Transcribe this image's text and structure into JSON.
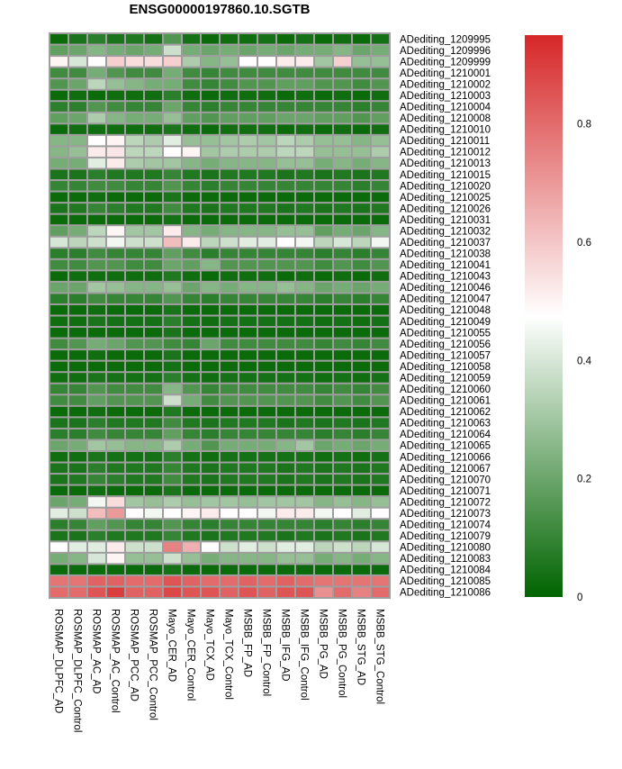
{
  "chart_data": {
    "type": "heatmap",
    "title": "ENSG00000197860.10.SGTB",
    "columns": [
      "ROSMAP_DLPFC_AD",
      "ROSMAP_DLPFC_Control",
      "ROSMAP_AC_AD",
      "ROSMAP_AC_Control",
      "ROSMAP_PCC_AD",
      "ROSMAP_PCC_Control",
      "Mayo_CER_AD",
      "Mayo_CER_Control",
      "Mayo_TCX_AD",
      "Mayo_TCX_Control",
      "MSBB_FP_AD",
      "MSBB_FP_Control",
      "MSBB_IFG_AD",
      "MSBB_IFG_Control",
      "MSBB_PG_AD",
      "MSBB_PG_Control",
      "MSBB_STG_AD",
      "MSBB_STG_Control"
    ],
    "rows": [
      "ADediting_1209995",
      "ADediting_1209996",
      "ADediting_1209999",
      "ADediting_1210001",
      "ADediting_1210002",
      "ADediting_1210003",
      "ADediting_1210004",
      "ADediting_1210008",
      "ADediting_1210010",
      "ADediting_1210011",
      "ADediting_1210012",
      "ADediting_1210013",
      "ADediting_1210015",
      "ADediting_1210020",
      "ADediting_1210025",
      "ADediting_1210026",
      "ADediting_1210031",
      "ADediting_1210032",
      "ADediting_1210037",
      "ADediting_1210038",
      "ADediting_1210041",
      "ADediting_1210043",
      "ADediting_1210046",
      "ADediting_1210047",
      "ADediting_1210048",
      "ADediting_1210049",
      "ADediting_1210055",
      "ADediting_1210056",
      "ADediting_1210057",
      "ADediting_1210058",
      "ADediting_1210059",
      "ADediting_1210060",
      "ADediting_1210061",
      "ADediting_1210062",
      "ADediting_1210063",
      "ADediting_1210064",
      "ADediting_1210065",
      "ADediting_1210066",
      "ADediting_1210067",
      "ADediting_1210070",
      "ADediting_1210071",
      "ADediting_1210072",
      "ADediting_1210073",
      "ADediting_1210074",
      "ADediting_1210079",
      "ADediting_1210080",
      "ADediting_1210083",
      "ADediting_1210084",
      "ADediting_1210085",
      "ADediting_1210086"
    ],
    "values": [
      [
        0.02,
        0.05,
        0.08,
        0.05,
        0.06,
        0.04,
        0.15,
        0.04,
        0.02,
        0.03,
        0.03,
        0.04,
        0.02,
        0.04,
        0.02,
        0.03,
        0.02,
        0.04
      ],
      [
        0.18,
        0.2,
        0.25,
        0.22,
        0.2,
        0.22,
        0.38,
        0.22,
        0.2,
        0.22,
        0.2,
        0.22,
        0.2,
        0.22,
        0.22,
        0.25,
        0.2,
        0.22
      ],
      [
        0.5,
        0.4,
        0.48,
        0.58,
        0.55,
        0.55,
        0.58,
        0.32,
        0.25,
        0.28,
        0.48,
        0.48,
        0.52,
        0.52,
        0.3,
        0.58,
        0.28,
        0.28
      ],
      [
        0.12,
        0.12,
        0.22,
        0.15,
        0.12,
        0.12,
        0.22,
        0.12,
        0.1,
        0.12,
        0.12,
        0.12,
        0.12,
        0.12,
        0.12,
        0.12,
        0.12,
        0.12
      ],
      [
        0.15,
        0.2,
        0.35,
        0.28,
        0.25,
        0.22,
        0.22,
        0.12,
        0.1,
        0.12,
        0.15,
        0.15,
        0.18,
        0.18,
        0.15,
        0.15,
        0.12,
        0.15
      ],
      [
        0.02,
        0.03,
        0.02,
        0.03,
        0.03,
        0.03,
        0.08,
        0.03,
        0.02,
        0.03,
        0.03,
        0.03,
        0.02,
        0.03,
        0.02,
        0.03,
        0.02,
        0.03
      ],
      [
        0.08,
        0.08,
        0.15,
        0.12,
        0.1,
        0.1,
        0.2,
        0.1,
        0.08,
        0.1,
        0.1,
        0.1,
        0.1,
        0.1,
        0.1,
        0.1,
        0.08,
        0.1
      ],
      [
        0.18,
        0.2,
        0.32,
        0.25,
        0.22,
        0.22,
        0.28,
        0.18,
        0.15,
        0.18,
        0.18,
        0.18,
        0.2,
        0.2,
        0.18,
        0.18,
        0.15,
        0.18
      ],
      [
        0.02,
        0.03,
        0.03,
        0.03,
        0.03,
        0.03,
        0.05,
        0.03,
        0.02,
        0.03,
        0.03,
        0.03,
        0.02,
        0.03,
        0.02,
        0.03,
        0.02,
        0.03
      ],
      [
        0.25,
        0.25,
        0.48,
        0.5,
        0.35,
        0.32,
        0.42,
        0.28,
        0.28,
        0.3,
        0.32,
        0.3,
        0.35,
        0.32,
        0.28,
        0.28,
        0.25,
        0.28
      ],
      [
        0.25,
        0.28,
        0.52,
        0.53,
        0.35,
        0.35,
        0.48,
        0.5,
        0.3,
        0.32,
        0.32,
        0.32,
        0.35,
        0.35,
        0.28,
        0.28,
        0.28,
        0.32
      ],
      [
        0.22,
        0.22,
        0.42,
        0.52,
        0.32,
        0.3,
        0.3,
        0.25,
        0.22,
        0.25,
        0.25,
        0.25,
        0.28,
        0.28,
        0.22,
        0.25,
        0.22,
        0.25
      ],
      [
        0.05,
        0.05,
        0.08,
        0.06,
        0.06,
        0.06,
        0.1,
        0.06,
        0.05,
        0.06,
        0.06,
        0.06,
        0.05,
        0.06,
        0.05,
        0.06,
        0.05,
        0.06
      ],
      [
        0.1,
        0.1,
        0.12,
        0.12,
        0.1,
        0.1,
        0.15,
        0.1,
        0.08,
        0.1,
        0.1,
        0.1,
        0.1,
        0.1,
        0.1,
        0.1,
        0.08,
        0.1
      ],
      [
        0.02,
        0.02,
        0.03,
        0.02,
        0.02,
        0.02,
        0.05,
        0.02,
        0.02,
        0.02,
        0.02,
        0.02,
        0.02,
        0.02,
        0.02,
        0.02,
        0.02,
        0.02
      ],
      [
        0.05,
        0.06,
        0.1,
        0.08,
        0.06,
        0.06,
        0.12,
        0.06,
        0.05,
        0.06,
        0.06,
        0.06,
        0.05,
        0.06,
        0.05,
        0.06,
        0.05,
        0.06
      ],
      [
        0.02,
        0.02,
        0.02,
        0.02,
        0.02,
        0.02,
        0.04,
        0.02,
        0.02,
        0.02,
        0.02,
        0.02,
        0.02,
        0.02,
        0.02,
        0.02,
        0.02,
        0.02
      ],
      [
        0.18,
        0.22,
        0.35,
        0.5,
        0.3,
        0.3,
        0.52,
        0.25,
        0.22,
        0.25,
        0.25,
        0.25,
        0.28,
        0.28,
        0.18,
        0.22,
        0.2,
        0.25
      ],
      [
        0.4,
        0.35,
        0.38,
        0.45,
        0.38,
        0.38,
        0.62,
        0.52,
        0.35,
        0.38,
        0.42,
        0.42,
        0.48,
        0.45,
        0.35,
        0.4,
        0.35,
        0.45
      ],
      [
        0.08,
        0.08,
        0.12,
        0.1,
        0.1,
        0.1,
        0.18,
        0.12,
        0.08,
        0.1,
        0.1,
        0.1,
        0.1,
        0.1,
        0.08,
        0.1,
        0.08,
        0.1
      ],
      [
        0.12,
        0.12,
        0.15,
        0.15,
        0.12,
        0.12,
        0.2,
        0.18,
        0.25,
        0.15,
        0.15,
        0.15,
        0.15,
        0.15,
        0.12,
        0.15,
        0.12,
        0.15
      ],
      [
        0.02,
        0.03,
        0.03,
        0.03,
        0.03,
        0.03,
        0.06,
        0.03,
        0.02,
        0.03,
        0.03,
        0.03,
        0.02,
        0.03,
        0.02,
        0.03,
        0.02,
        0.03
      ],
      [
        0.2,
        0.2,
        0.3,
        0.28,
        0.25,
        0.25,
        0.28,
        0.2,
        0.25,
        0.22,
        0.25,
        0.25,
        0.28,
        0.25,
        0.2,
        0.22,
        0.2,
        0.22
      ],
      [
        0.08,
        0.08,
        0.12,
        0.1,
        0.1,
        0.1,
        0.15,
        0.1,
        0.08,
        0.1,
        0.1,
        0.1,
        0.1,
        0.1,
        0.08,
        0.1,
        0.08,
        0.1
      ],
      [
        0.02,
        0.02,
        0.03,
        0.02,
        0.02,
        0.02,
        0.05,
        0.02,
        0.02,
        0.02,
        0.02,
        0.02,
        0.02,
        0.02,
        0.02,
        0.02,
        0.02,
        0.02
      ],
      [
        0.03,
        0.03,
        0.05,
        0.04,
        0.04,
        0.04,
        0.08,
        0.04,
        0.03,
        0.04,
        0.04,
        0.04,
        0.04,
        0.04,
        0.03,
        0.04,
        0.03,
        0.04
      ],
      [
        0.02,
        0.02,
        0.02,
        0.02,
        0.02,
        0.02,
        0.05,
        0.02,
        0.02,
        0.02,
        0.02,
        0.02,
        0.02,
        0.02,
        0.02,
        0.02,
        0.02,
        0.02
      ],
      [
        0.12,
        0.15,
        0.22,
        0.2,
        0.15,
        0.15,
        0.12,
        0.1,
        0.2,
        0.12,
        0.12,
        0.12,
        0.12,
        0.12,
        0.1,
        0.12,
        0.1,
        0.12
      ],
      [
        0.02,
        0.02,
        0.03,
        0.02,
        0.02,
        0.02,
        0.05,
        0.02,
        0.02,
        0.02,
        0.02,
        0.02,
        0.02,
        0.02,
        0.02,
        0.02,
        0.02,
        0.02
      ],
      [
        0.02,
        0.02,
        0.02,
        0.02,
        0.02,
        0.02,
        0.04,
        0.02,
        0.02,
        0.02,
        0.02,
        0.02,
        0.02,
        0.02,
        0.02,
        0.02,
        0.02,
        0.02
      ],
      [
        0.03,
        0.03,
        0.05,
        0.04,
        0.04,
        0.04,
        0.08,
        0.04,
        0.03,
        0.04,
        0.04,
        0.04,
        0.04,
        0.04,
        0.03,
        0.04,
        0.03,
        0.04
      ],
      [
        0.1,
        0.1,
        0.15,
        0.12,
        0.12,
        0.12,
        0.25,
        0.15,
        0.1,
        0.12,
        0.12,
        0.12,
        0.12,
        0.12,
        0.1,
        0.12,
        0.1,
        0.12
      ],
      [
        0.12,
        0.12,
        0.18,
        0.15,
        0.15,
        0.15,
        0.38,
        0.22,
        0.12,
        0.15,
        0.15,
        0.15,
        0.15,
        0.15,
        0.12,
        0.15,
        0.12,
        0.15
      ],
      [
        0.02,
        0.02,
        0.03,
        0.02,
        0.02,
        0.02,
        0.06,
        0.02,
        0.02,
        0.02,
        0.02,
        0.02,
        0.02,
        0.02,
        0.02,
        0.02,
        0.02,
        0.02
      ],
      [
        0.05,
        0.05,
        0.08,
        0.06,
        0.06,
        0.06,
        0.12,
        0.06,
        0.05,
        0.06,
        0.06,
        0.06,
        0.05,
        0.06,
        0.05,
        0.06,
        0.05,
        0.06
      ],
      [
        0.08,
        0.08,
        0.12,
        0.1,
        0.1,
        0.1,
        0.18,
        0.1,
        0.08,
        0.1,
        0.1,
        0.1,
        0.1,
        0.1,
        0.08,
        0.1,
        0.08,
        0.1
      ],
      [
        0.2,
        0.22,
        0.3,
        0.28,
        0.25,
        0.25,
        0.32,
        0.22,
        0.15,
        0.22,
        0.22,
        0.22,
        0.25,
        0.3,
        0.2,
        0.22,
        0.2,
        0.22
      ],
      [
        0.03,
        0.03,
        0.05,
        0.04,
        0.04,
        0.04,
        0.08,
        0.04,
        0.03,
        0.04,
        0.04,
        0.04,
        0.04,
        0.04,
        0.03,
        0.04,
        0.03,
        0.04
      ],
      [
        0.05,
        0.05,
        0.08,
        0.06,
        0.06,
        0.06,
        0.1,
        0.06,
        0.05,
        0.06,
        0.06,
        0.06,
        0.05,
        0.06,
        0.05,
        0.06,
        0.05,
        0.06
      ],
      [
        0.05,
        0.06,
        0.1,
        0.08,
        0.06,
        0.06,
        0.12,
        0.06,
        0.05,
        0.06,
        0.06,
        0.06,
        0.05,
        0.06,
        0.05,
        0.06,
        0.05,
        0.06
      ],
      [
        0.02,
        0.02,
        0.03,
        0.02,
        0.02,
        0.02,
        0.05,
        0.02,
        0.02,
        0.02,
        0.02,
        0.02,
        0.02,
        0.02,
        0.02,
        0.02,
        0.02,
        0.02
      ],
      [
        0.2,
        0.22,
        0.45,
        0.55,
        0.3,
        0.28,
        0.32,
        0.28,
        0.3,
        0.3,
        0.28,
        0.3,
        0.3,
        0.3,
        0.25,
        0.28,
        0.25,
        0.28
      ],
      [
        0.42,
        0.38,
        0.62,
        0.7,
        0.48,
        0.45,
        0.48,
        0.5,
        0.52,
        0.48,
        0.48,
        0.45,
        0.52,
        0.52,
        0.45,
        0.48,
        0.42,
        0.48
      ],
      [
        0.08,
        0.1,
        0.18,
        0.15,
        0.1,
        0.1,
        0.15,
        0.1,
        0.08,
        0.1,
        0.1,
        0.1,
        0.1,
        0.1,
        0.08,
        0.1,
        0.08,
        0.1
      ],
      [
        0.05,
        0.05,
        0.08,
        0.06,
        0.06,
        0.06,
        0.1,
        0.06,
        0.05,
        0.06,
        0.06,
        0.06,
        0.05,
        0.06,
        0.05,
        0.06,
        0.05,
        0.06
      ],
      [
        0.48,
        0.42,
        0.42,
        0.52,
        0.38,
        0.38,
        0.75,
        0.65,
        0.48,
        0.38,
        0.42,
        0.38,
        0.42,
        0.42,
        0.35,
        0.38,
        0.35,
        0.4
      ],
      [
        0.22,
        0.25,
        0.4,
        0.5,
        0.28,
        0.28,
        0.38,
        0.28,
        0.22,
        0.25,
        0.25,
        0.25,
        0.28,
        0.28,
        0.22,
        0.25,
        0.22,
        0.25
      ],
      [
        0.02,
        0.02,
        0.02,
        0.02,
        0.02,
        0.02,
        0.04,
        0.02,
        0.02,
        0.02,
        0.02,
        0.02,
        0.02,
        0.02,
        0.02,
        0.02,
        0.02,
        0.02
      ],
      [
        0.78,
        0.78,
        0.82,
        0.82,
        0.8,
        0.8,
        0.85,
        0.82,
        0.8,
        0.8,
        0.82,
        0.8,
        0.82,
        0.8,
        0.78,
        0.78,
        0.78,
        0.78
      ],
      [
        0.8,
        0.8,
        0.85,
        0.9,
        0.82,
        0.82,
        0.88,
        0.85,
        0.85,
        0.82,
        0.85,
        0.82,
        0.85,
        0.85,
        0.72,
        0.8,
        0.75,
        0.8
      ]
    ],
    "colorbar": {
      "range": [
        0,
        0.95
      ],
      "ticks": [
        0,
        0.2,
        0.4,
        0.6,
        0.8
      ],
      "tick_labels": [
        "0",
        "0.2",
        "0.4",
        "0.6",
        "0.8"
      ],
      "colors": {
        "low": "#006400",
        "mid": "#ffffff",
        "high": "#d62728",
        "mid_value": 0.475
      }
    },
    "cell_border_color": "#9e9e9e",
    "legend": "right"
  }
}
